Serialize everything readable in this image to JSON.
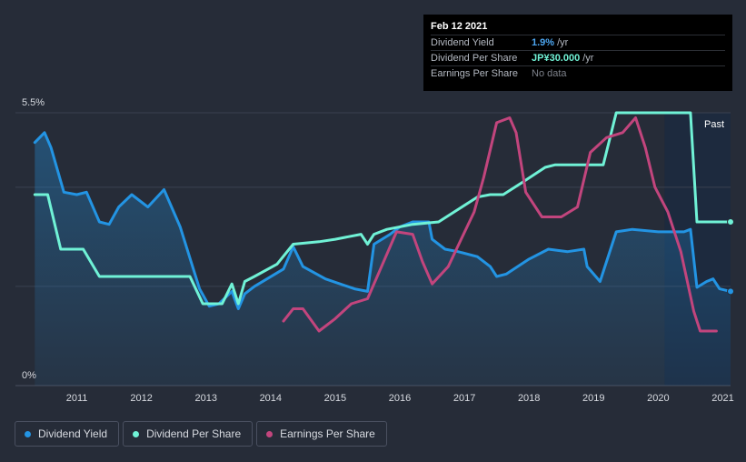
{
  "tooltip": {
    "date": "Feb 12 2021",
    "rows": [
      {
        "label": "Dividend Yield",
        "value": "1.9%",
        "unit": "/yr"
      },
      {
        "label": "Dividend Per Share",
        "value": "JP¥30.000",
        "unit": "/yr"
      },
      {
        "label": "Earnings Per Share",
        "value": "No data",
        "unit": ""
      }
    ]
  },
  "legend": [
    {
      "label": "Dividend Yield",
      "color": "#2394e3"
    },
    {
      "label": "Dividend Per Share",
      "color": "#70f2d6"
    },
    {
      "label": "Earnings Per Share",
      "color": "#c2457d"
    }
  ],
  "past_label": "Past",
  "colors": {
    "background": "#262c38",
    "yield": "#2394e3",
    "dps": "#70f2d6",
    "eps": "#c2457d",
    "past_band": "#1c2a40"
  },
  "chart_data": {
    "type": "line",
    "x_range": [
      2010.35,
      2021.12
    ],
    "ylim": [
      0,
      5.5
    ],
    "y_ticks": [
      {
        "value": 5.5,
        "label": "5.5%"
      },
      {
        "value": 0,
        "label": "0%"
      }
    ],
    "x_ticks": [
      {
        "value": 2011,
        "label": "2011"
      },
      {
        "value": 2012,
        "label": "2012"
      },
      {
        "value": 2013,
        "label": "2013"
      },
      {
        "value": 2014,
        "label": "2014"
      },
      {
        "value": 2015,
        "label": "2015"
      },
      {
        "value": 2016,
        "label": "2016"
      },
      {
        "value": 2017,
        "label": "2017"
      },
      {
        "value": 2018,
        "label": "2018"
      },
      {
        "value": 2019,
        "label": "2019"
      },
      {
        "value": 2020,
        "label": "2020"
      },
      {
        "value": 2021,
        "label": "2021"
      }
    ],
    "gridlines": [
      5.5,
      4.0,
      2.0
    ],
    "series": [
      {
        "name": "Dividend Yield",
        "unit": "%",
        "filled": true,
        "points": [
          [
            2010.35,
            4.9
          ],
          [
            2010.5,
            5.1
          ],
          [
            2010.6,
            4.8
          ],
          [
            2010.8,
            3.9
          ],
          [
            2011.0,
            3.85
          ],
          [
            2011.15,
            3.9
          ],
          [
            2011.35,
            3.3
          ],
          [
            2011.5,
            3.25
          ],
          [
            2011.65,
            3.6
          ],
          [
            2011.85,
            3.85
          ],
          [
            2012.1,
            3.6
          ],
          [
            2012.35,
            3.95
          ],
          [
            2012.6,
            3.2
          ],
          [
            2012.9,
            1.95
          ],
          [
            2013.05,
            1.6
          ],
          [
            2013.2,
            1.65
          ],
          [
            2013.4,
            1.9
          ],
          [
            2013.5,
            1.55
          ],
          [
            2013.6,
            1.85
          ],
          [
            2013.75,
            2.0
          ],
          [
            2014.2,
            2.35
          ],
          [
            2014.35,
            2.8
          ],
          [
            2014.5,
            2.4
          ],
          [
            2014.85,
            2.15
          ],
          [
            2015.3,
            1.95
          ],
          [
            2015.5,
            1.9
          ],
          [
            2015.6,
            2.85
          ],
          [
            2015.85,
            3.05
          ],
          [
            2016.0,
            3.2
          ],
          [
            2016.2,
            3.3
          ],
          [
            2016.45,
            3.3
          ],
          [
            2016.5,
            2.95
          ],
          [
            2016.7,
            2.75
          ],
          [
            2016.9,
            2.7
          ],
          [
            2017.2,
            2.6
          ],
          [
            2017.4,
            2.4
          ],
          [
            2017.5,
            2.2
          ],
          [
            2017.65,
            2.25
          ],
          [
            2018.0,
            2.55
          ],
          [
            2018.3,
            2.75
          ],
          [
            2018.6,
            2.7
          ],
          [
            2018.85,
            2.75
          ],
          [
            2018.9,
            2.4
          ],
          [
            2019.1,
            2.1
          ],
          [
            2019.35,
            3.1
          ],
          [
            2019.6,
            3.15
          ],
          [
            2020.0,
            3.1
          ],
          [
            2020.4,
            3.1
          ],
          [
            2020.5,
            3.15
          ],
          [
            2020.6,
            1.98
          ],
          [
            2020.75,
            2.1
          ],
          [
            2020.85,
            2.15
          ],
          [
            2020.95,
            1.95
          ],
          [
            2021.12,
            1.9
          ]
        ]
      },
      {
        "name": "Dividend Per Share",
        "unit": "JP¥",
        "filled": false,
        "points": [
          [
            2010.35,
            3.85
          ],
          [
            2010.55,
            3.85
          ],
          [
            2010.75,
            2.75
          ],
          [
            2010.95,
            2.75
          ],
          [
            2011.1,
            2.75
          ],
          [
            2011.35,
            2.2
          ],
          [
            2012.55,
            2.2
          ],
          [
            2012.75,
            2.2
          ],
          [
            2012.95,
            1.65
          ],
          [
            2013.25,
            1.65
          ],
          [
            2013.4,
            2.05
          ],
          [
            2013.5,
            1.65
          ],
          [
            2013.6,
            2.1
          ],
          [
            2013.75,
            2.2
          ],
          [
            2014.1,
            2.45
          ],
          [
            2014.35,
            2.85
          ],
          [
            2014.75,
            2.9
          ],
          [
            2015.0,
            2.95
          ],
          [
            2015.4,
            3.05
          ],
          [
            2015.5,
            2.85
          ],
          [
            2015.6,
            3.05
          ],
          [
            2015.8,
            3.15
          ],
          [
            2016.2,
            3.25
          ],
          [
            2016.6,
            3.3
          ],
          [
            2016.9,
            3.55
          ],
          [
            2017.2,
            3.8
          ],
          [
            2017.4,
            3.85
          ],
          [
            2017.6,
            3.85
          ],
          [
            2017.9,
            4.1
          ],
          [
            2018.25,
            4.4
          ],
          [
            2018.4,
            4.45
          ],
          [
            2019.15,
            4.45
          ],
          [
            2019.35,
            5.5
          ],
          [
            2020.5,
            5.5
          ],
          [
            2020.6,
            3.3
          ],
          [
            2021.12,
            3.3
          ]
        ]
      },
      {
        "name": "Earnings Per Share",
        "unit": "JP¥",
        "filled": false,
        "points": [
          [
            2014.2,
            1.3
          ],
          [
            2014.35,
            1.55
          ],
          [
            2014.5,
            1.55
          ],
          [
            2014.75,
            1.1
          ],
          [
            2015.0,
            1.35
          ],
          [
            2015.25,
            1.65
          ],
          [
            2015.5,
            1.75
          ],
          [
            2015.7,
            2.35
          ],
          [
            2015.95,
            3.1
          ],
          [
            2016.2,
            3.05
          ],
          [
            2016.35,
            2.5
          ],
          [
            2016.5,
            2.05
          ],
          [
            2016.75,
            2.4
          ],
          [
            2016.95,
            2.95
          ],
          [
            2017.15,
            3.5
          ],
          [
            2017.3,
            4.2
          ],
          [
            2017.5,
            5.3
          ],
          [
            2017.7,
            5.4
          ],
          [
            2017.8,
            5.1
          ],
          [
            2017.95,
            3.9
          ],
          [
            2018.2,
            3.4
          ],
          [
            2018.5,
            3.4
          ],
          [
            2018.75,
            3.6
          ],
          [
            2018.95,
            4.7
          ],
          [
            2019.2,
            5.0
          ],
          [
            2019.45,
            5.1
          ],
          [
            2019.65,
            5.4
          ],
          [
            2019.8,
            4.8
          ],
          [
            2019.95,
            4.0
          ],
          [
            2020.15,
            3.5
          ],
          [
            2020.35,
            2.7
          ],
          [
            2020.55,
            1.5
          ],
          [
            2020.65,
            1.1
          ],
          [
            2020.9,
            1.1
          ]
        ]
      }
    ],
    "past_region": [
      2020.1,
      2021.12
    ],
    "hover_x": 2021.12
  }
}
